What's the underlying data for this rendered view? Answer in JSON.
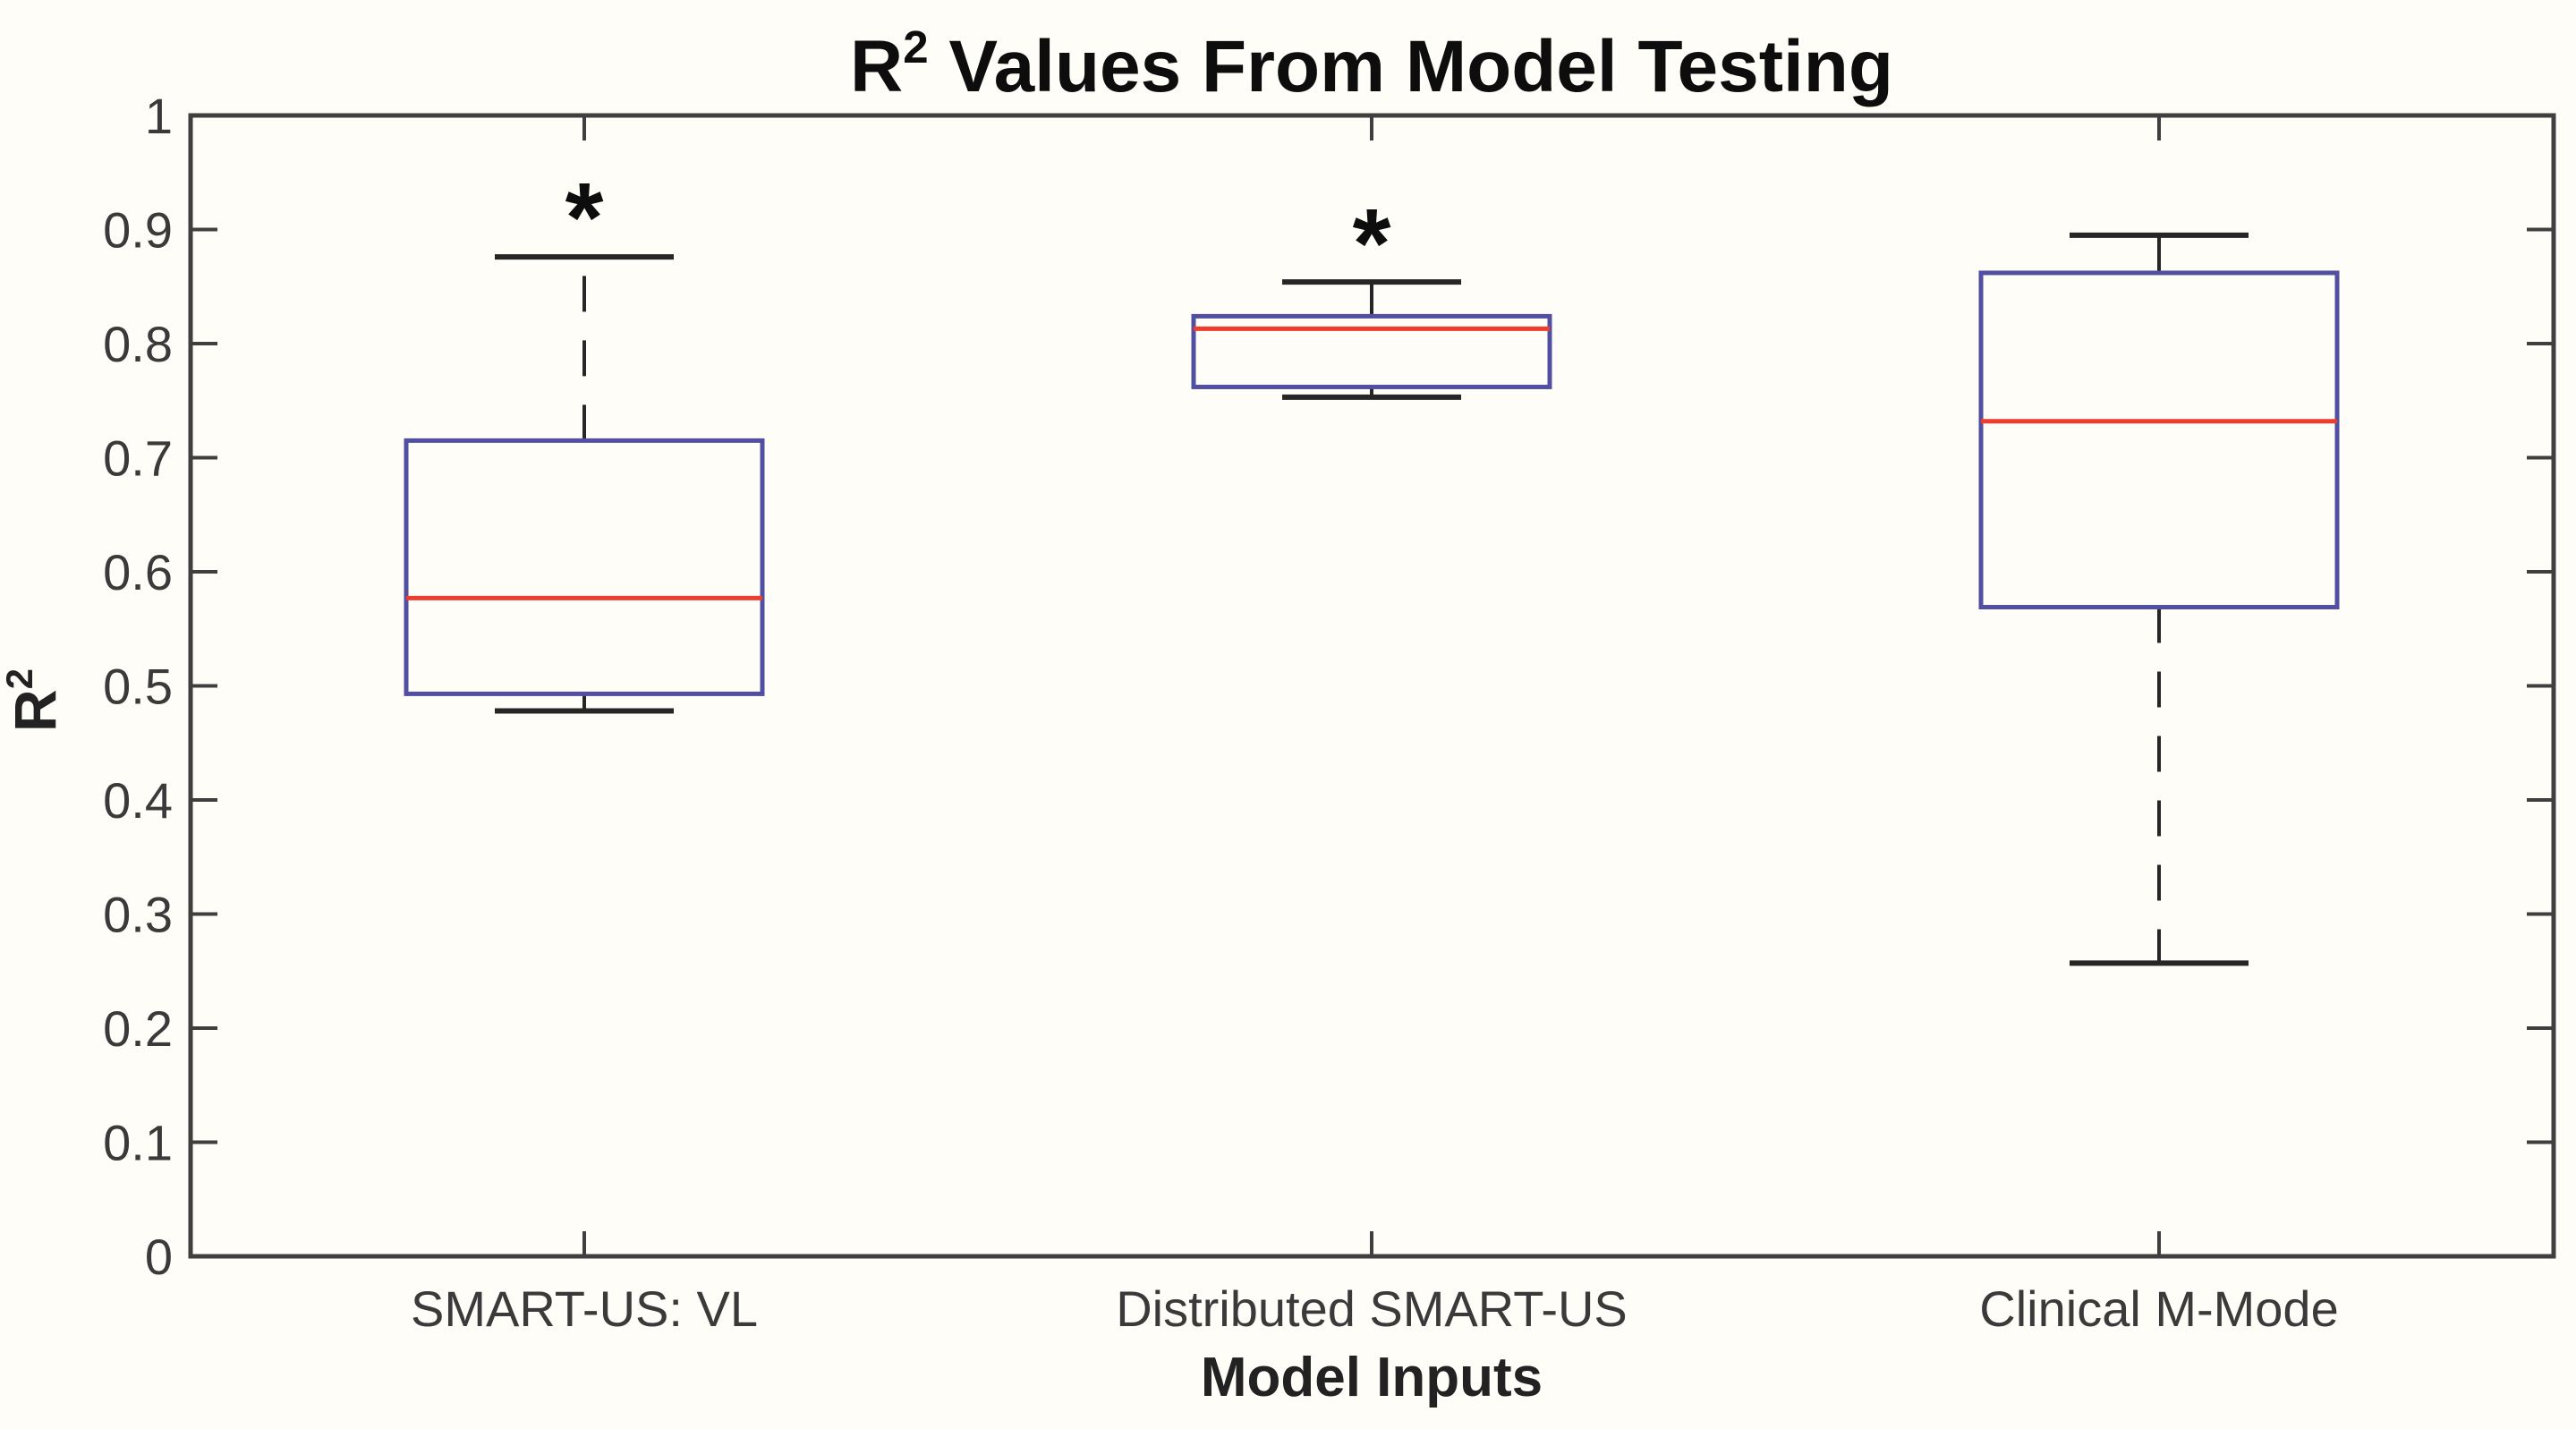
{
  "figure": {
    "background": "#fffdf8",
    "title": {
      "base": "R",
      "sup": "2",
      "rest": " Values From Model Testing"
    },
    "xlabel": "Model Inputs",
    "ylabel": {
      "base": "R",
      "sup": "2"
    }
  },
  "chart_data": {
    "type": "boxplot",
    "title": "R^2 Values From Model Testing",
    "xlabel": "Model Inputs",
    "ylabel": "R^2",
    "ylim": [
      0,
      1
    ],
    "yticks": [
      0,
      0.1,
      0.2,
      0.3,
      0.4,
      0.5,
      0.6,
      0.7,
      0.8,
      0.9,
      1
    ],
    "ytick_labels": [
      "0",
      "0.1",
      "0.2",
      "0.3",
      "0.4",
      "0.5",
      "0.6",
      "0.7",
      "0.8",
      "0.9",
      "1"
    ],
    "categories": [
      "SMART-US: VL",
      "Distributed SMART-US",
      "Clinical M-Mode"
    ],
    "series": [
      {
        "name": "SMART-US: VL",
        "whisker_low": 0.478,
        "q1": 0.493,
        "median": 0.577,
        "q3": 0.715,
        "whisker_high": 0.876
      },
      {
        "name": "Distributed SMART-US",
        "whisker_low": 0.753,
        "q1": 0.762,
        "median": 0.813,
        "q3": 0.824,
        "whisker_high": 0.854
      },
      {
        "name": "Clinical M-Mode",
        "whisker_low": 0.257,
        "q1": 0.569,
        "median": 0.732,
        "q3": 0.862,
        "whisker_high": 0.895
      }
    ],
    "annotations": [
      {
        "text": "*",
        "category_index": 0,
        "y": 0.924
      },
      {
        "text": "*",
        "category_index": 1,
        "y": 0.901
      }
    ],
    "grid": false,
    "legend": null,
    "tick_direction": "in",
    "box_style": {
      "box_edge_color": "#514fa1",
      "median_color": "#ee3c2e",
      "whisker_color": "#262626",
      "whisker_style": "dashed",
      "fill": "none"
    },
    "axis_color": "#3f3f3f",
    "tick_label_color": "#3a3a3a",
    "text_color": "#0d0d0d"
  }
}
